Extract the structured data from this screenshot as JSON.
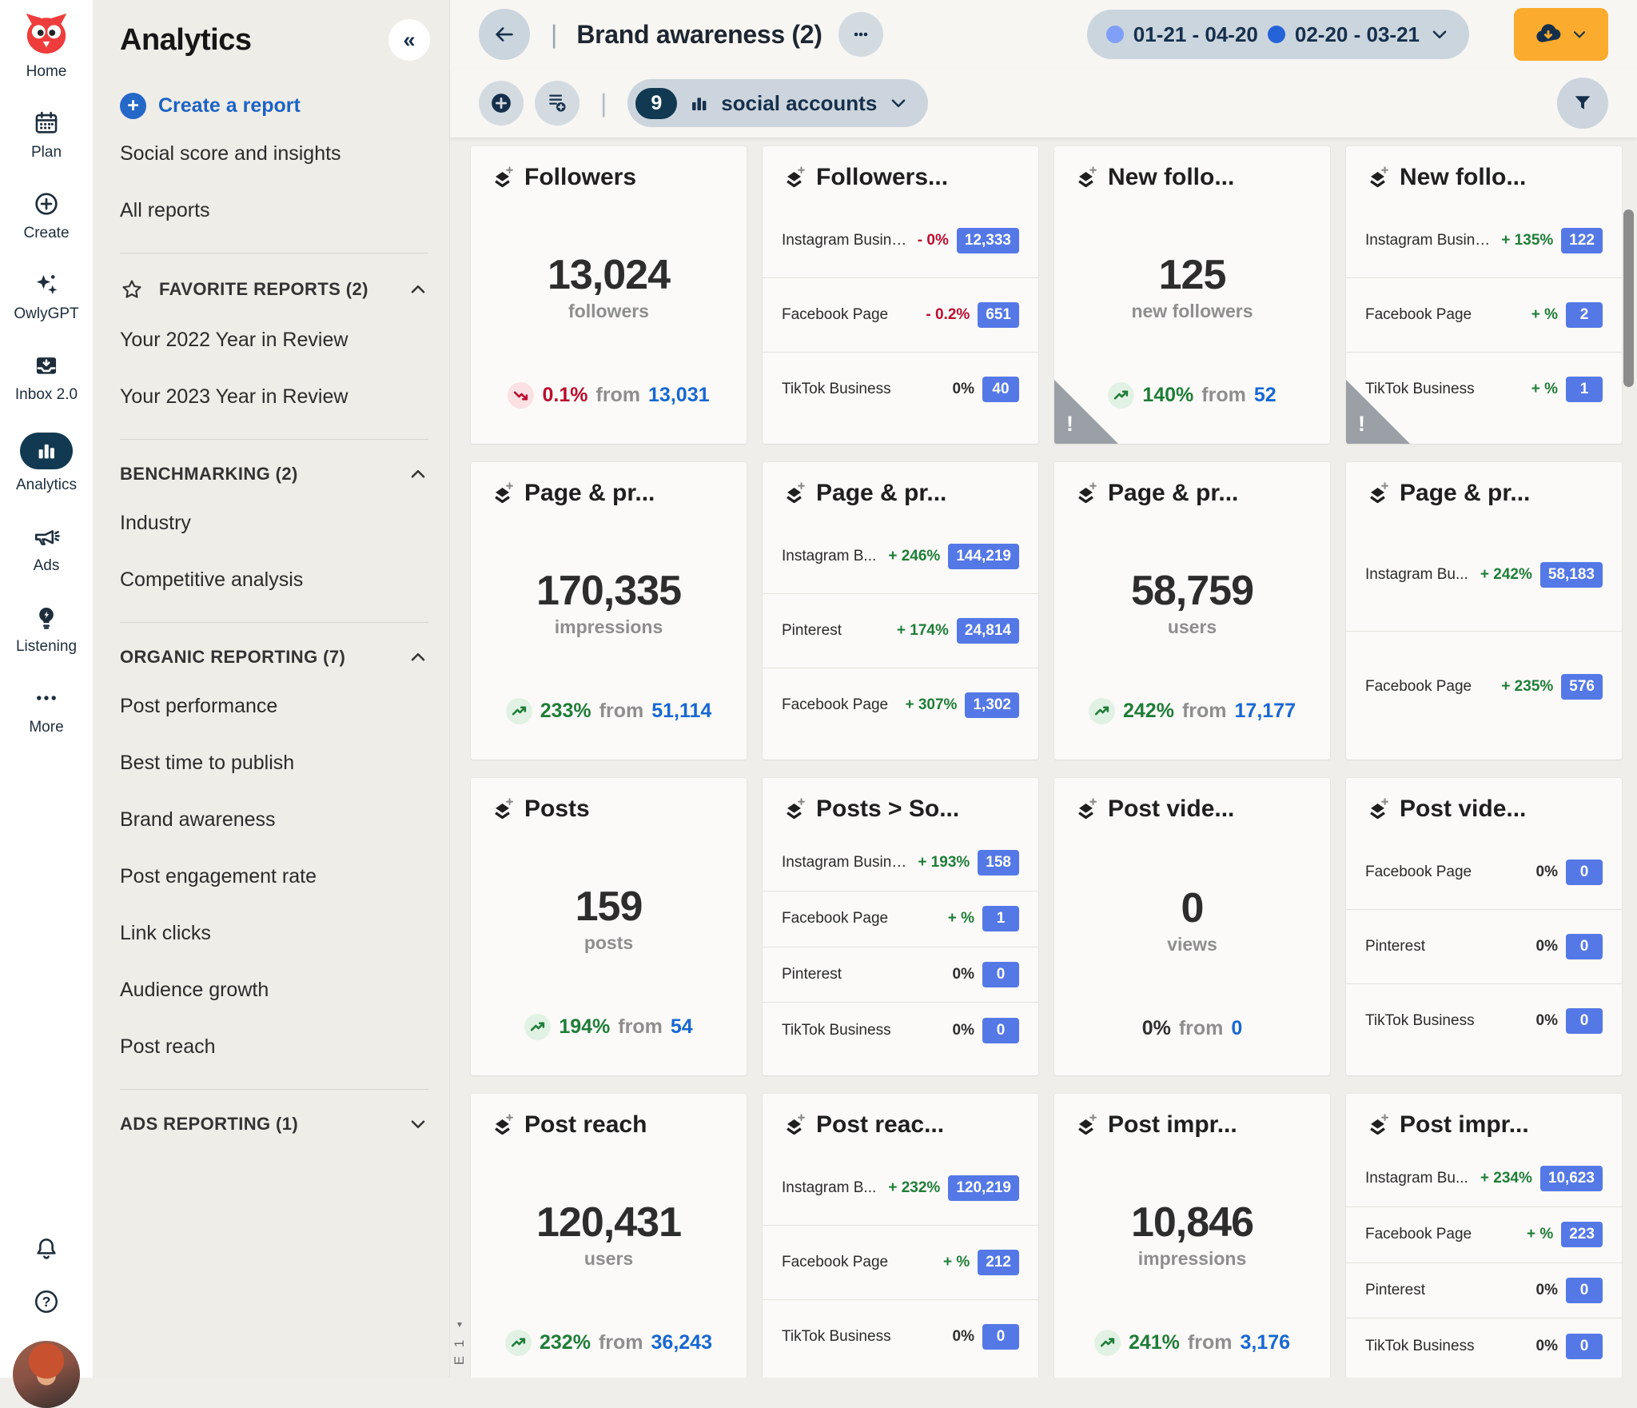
{
  "colors": {
    "accent_orange": "#fbab2d",
    "badge_blue": "#5478e6",
    "positive_green": "#1f7d38",
    "negative_red": "#bb0d2e",
    "link_blue": "#1767d2",
    "navy": "#16304c"
  },
  "rail": {
    "items": [
      {
        "name": "home",
        "label": "Home",
        "icon": "owl"
      },
      {
        "name": "plan",
        "label": "Plan",
        "icon": "calendar"
      },
      {
        "name": "create",
        "label": "Create",
        "icon": "plus-circle"
      },
      {
        "name": "owlygpt",
        "label": "OwlyGPT",
        "icon": "sparkles"
      },
      {
        "name": "inbox",
        "label": "Inbox 2.0",
        "icon": "inbox"
      },
      {
        "name": "analytics",
        "label": "Analytics",
        "icon": "bar-chart",
        "active": true
      },
      {
        "name": "ads",
        "label": "Ads",
        "icon": "megaphone"
      },
      {
        "name": "listening",
        "label": "Listening",
        "icon": "bulb"
      },
      {
        "name": "more",
        "label": "More",
        "icon": "dots"
      }
    ]
  },
  "sidebar": {
    "title": "Analytics",
    "collapse_glyph": "«",
    "create_plus_glyph": "+",
    "create_report": "Create a report",
    "groups": [
      {
        "items": [
          "Social score and insights",
          "All reports"
        ]
      },
      {
        "header": "FAVORITE REPORTS (2)",
        "star": true,
        "chevron": "up",
        "items": [
          "Your 2022 Year in Review",
          "Your 2023 Year in Review"
        ]
      },
      {
        "header": "BENCHMARKING (2)",
        "chevron": "up",
        "items": [
          "Industry",
          "Competitive analysis"
        ]
      },
      {
        "header": "ORGANIC REPORTING (7)",
        "chevron": "up",
        "items": [
          "Post performance",
          "Best time to publish",
          "Brand awareness",
          "Post engagement rate",
          "Link clicks",
          "Audience growth",
          "Post reach"
        ]
      },
      {
        "header": "ADS REPORTING (1)",
        "chevron": "down",
        "items": []
      }
    ]
  },
  "topbar": {
    "divider_glyph": "|",
    "title": "Brand awareness (2)",
    "date_ranges": [
      {
        "label": "01-21 - 04-20",
        "dot_color": "#7f9ff8"
      },
      {
        "label": "02-20 - 03-21",
        "dot_color": "#2563d8"
      }
    ]
  },
  "toolbar": {
    "accounts_count": "9",
    "accounts_label": "social accounts"
  },
  "page_tab": {
    "label": "E 1",
    "arrow_glyph": "▴"
  },
  "cards": [
    {
      "type": "summary",
      "title": "Followers",
      "value": "13,024",
      "unit": "followers",
      "delta": {
        "trend": "down",
        "pct": "0.1%",
        "from": "from",
        "value": "13,031"
      }
    },
    {
      "type": "breakdown",
      "title": "Followers...",
      "rows": [
        {
          "label": "Instagram Business",
          "pct": "- 0%",
          "tone": "negative",
          "value": "12,333"
        },
        {
          "label": "Facebook Page",
          "pct": "- 0.2%",
          "tone": "negative",
          "value": "651"
        },
        {
          "label": "TikTok Business",
          "pct": "0%",
          "tone": "neutral",
          "value": "40"
        }
      ]
    },
    {
      "type": "summary",
      "title": "New follo...",
      "value": "125",
      "unit": "new followers",
      "warning": true,
      "delta": {
        "trend": "up",
        "pct": "140%",
        "from": "from",
        "value": "52"
      }
    },
    {
      "type": "breakdown",
      "title": "New follo...",
      "warning": true,
      "rows": [
        {
          "label": "Instagram Business",
          "pct": "+ 135%",
          "tone": "positive",
          "value": "122"
        },
        {
          "label": "Facebook Page",
          "pct": "+ %",
          "tone": "positive",
          "value": "2"
        },
        {
          "label": "TikTok Business",
          "pct": "+ %",
          "tone": "positive",
          "value": "1"
        }
      ]
    },
    {
      "type": "summary",
      "title": "Page & pr...",
      "value": "170,335",
      "unit": "impressions",
      "delta": {
        "trend": "up",
        "pct": "233%",
        "from": "from",
        "value": "51,114"
      }
    },
    {
      "type": "breakdown",
      "title": "Page & pr...",
      "rows": [
        {
          "label": "Instagram B...",
          "pct": "+ 246%",
          "tone": "positive",
          "value": "144,219"
        },
        {
          "label": "Pinterest",
          "pct": "+ 174%",
          "tone": "positive",
          "value": "24,814"
        },
        {
          "label": "Facebook Page",
          "pct": "+ 307%",
          "tone": "positive",
          "value": "1,302"
        }
      ]
    },
    {
      "type": "summary",
      "title": "Page & pr...",
      "value": "58,759",
      "unit": "users",
      "delta": {
        "trend": "up",
        "pct": "242%",
        "from": "from",
        "value": "17,177"
      }
    },
    {
      "type": "breakdown",
      "title": "Page & pr...",
      "rows": [
        {
          "label": "Instagram Bu...",
          "pct": "+ 242%",
          "tone": "positive",
          "value": "58,183"
        },
        {
          "label": "Facebook Page",
          "pct": "+ 235%",
          "tone": "positive",
          "value": "576"
        }
      ]
    },
    {
      "type": "summary",
      "title": "Posts",
      "value": "159",
      "unit": "posts",
      "delta": {
        "trend": "up",
        "pct": "194%",
        "from": "from",
        "value": "54"
      }
    },
    {
      "type": "breakdown",
      "title": "Posts > So...",
      "rows": [
        {
          "label": "Instagram Business",
          "pct": "+ 193%",
          "tone": "positive",
          "value": "158"
        },
        {
          "label": "Facebook Page",
          "pct": "+ %",
          "tone": "positive",
          "value": "1"
        },
        {
          "label": "Pinterest",
          "pct": "0%",
          "tone": "neutral",
          "value": "0"
        },
        {
          "label": "TikTok Business",
          "pct": "0%",
          "tone": "neutral",
          "value": "0"
        }
      ]
    },
    {
      "type": "summary",
      "title": "Post vide...",
      "value": "0",
      "unit": "views",
      "delta": {
        "trend": "none",
        "pct": "0%",
        "from": "from",
        "value": "0"
      }
    },
    {
      "type": "breakdown",
      "title": "Post vide...",
      "rows": [
        {
          "label": "Facebook Page",
          "pct": "0%",
          "tone": "neutral",
          "value": "0"
        },
        {
          "label": "Pinterest",
          "pct": "0%",
          "tone": "neutral",
          "value": "0"
        },
        {
          "label": "TikTok Business",
          "pct": "0%",
          "tone": "neutral",
          "value": "0"
        }
      ]
    },
    {
      "type": "summary",
      "title": "Post reach",
      "value": "120,431",
      "unit": "users",
      "delta": {
        "trend": "up",
        "pct": "232%",
        "from": "from",
        "value": "36,243"
      }
    },
    {
      "type": "breakdown",
      "title": "Post reac...",
      "rows": [
        {
          "label": "Instagram B...",
          "pct": "+ 232%",
          "tone": "positive",
          "value": "120,219"
        },
        {
          "label": "Facebook Page",
          "pct": "+ %",
          "tone": "positive",
          "value": "212"
        },
        {
          "label": "TikTok Business",
          "pct": "0%",
          "tone": "neutral",
          "value": "0"
        }
      ]
    },
    {
      "type": "summary",
      "title": "Post impr...",
      "value": "10,846",
      "unit": "impressions",
      "delta": {
        "trend": "up",
        "pct": "241%",
        "from": "from",
        "value": "3,176"
      }
    },
    {
      "type": "breakdown",
      "title": "Post impr...",
      "rows": [
        {
          "label": "Instagram Bu...",
          "pct": "+ 234%",
          "tone": "positive",
          "value": "10,623"
        },
        {
          "label": "Facebook Page",
          "pct": "+ %",
          "tone": "positive",
          "value": "223"
        },
        {
          "label": "Pinterest",
          "pct": "0%",
          "tone": "neutral",
          "value": "0"
        },
        {
          "label": "TikTok Business",
          "pct": "0%",
          "tone": "neutral",
          "value": "0"
        }
      ]
    }
  ]
}
